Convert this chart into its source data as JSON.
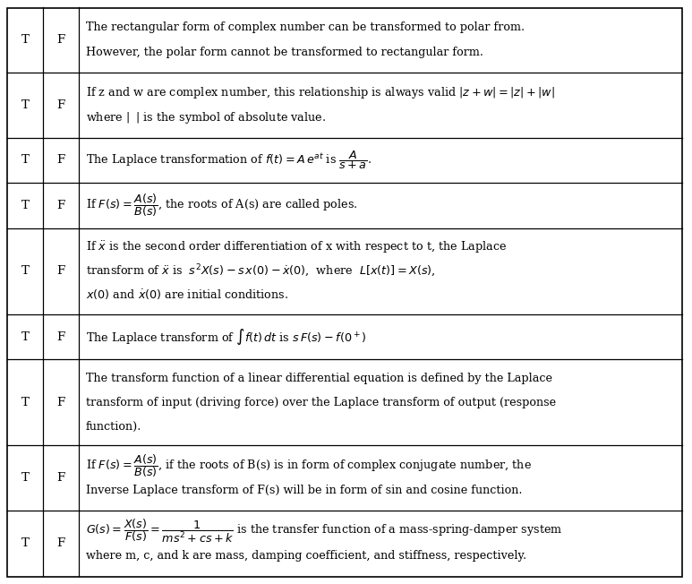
{
  "bg_color": "#ffffff",
  "border_color": "#000000",
  "rows": [
    {
      "lines": 2,
      "row_lines": [
        "The rectangular form of complex number can be transformed to polar from.",
        "However, the polar form cannot be transformed to rectangular form."
      ]
    },
    {
      "lines": 2,
      "row_lines": [
        "If z and w are complex number, this relationship is always valid $|z+w|=|z|+|w|$",
        "where $|\\;\\;|$ is the symbol of absolute value."
      ]
    },
    {
      "lines": 1,
      "row_lines": [
        "The Laplace transformation of $f(t) = A\\,e^{at}$ is $\\dfrac{A}{s+a}$."
      ]
    },
    {
      "lines": 1,
      "row_lines": [
        "If $F(s) = \\dfrac{A(s)}{B(s)}$, the roots of A(s) are called poles."
      ]
    },
    {
      "lines": 3,
      "row_lines": [
        "If $\\ddot{x}$ is the second order differentiation of x with respect to t, the Laplace",
        "transform of $\\ddot{x}$ is  $s^2X(s) - s\\,x(0) - \\dot{x}(0)$,  where  $L[x(t)] = X(s)$,",
        "$x(0)$ and $\\dot{x}(0)$ are initial conditions."
      ]
    },
    {
      "lines": 1,
      "row_lines": [
        "The Laplace transform of $\\int f(t)\\,dt$ is $s\\,F(s) - f(0^+)$"
      ]
    },
    {
      "lines": 3,
      "row_lines": [
        "The transform function of a linear differential equation is defined by the Laplace",
        "transform of input (driving force) over the Laplace transform of output (response",
        "function)."
      ]
    },
    {
      "lines": 2,
      "row_lines": [
        "If $F(s) = \\dfrac{A(s)}{B(s)}$, if the roots of B(s) is in form of complex conjugate number, the",
        "Inverse Laplace transform of F(s) will be in form of sin and cosine function."
      ]
    },
    {
      "lines": 2,
      "row_lines": [
        "$G(s) = \\dfrac{X(s)}{F(s)} = \\dfrac{1}{ms^2+cs+k}$ is the transfer function of a mass-spring-damper system",
        "where m, c, and k are mass, damping coefficient, and stiffness, respectively."
      ]
    }
  ]
}
